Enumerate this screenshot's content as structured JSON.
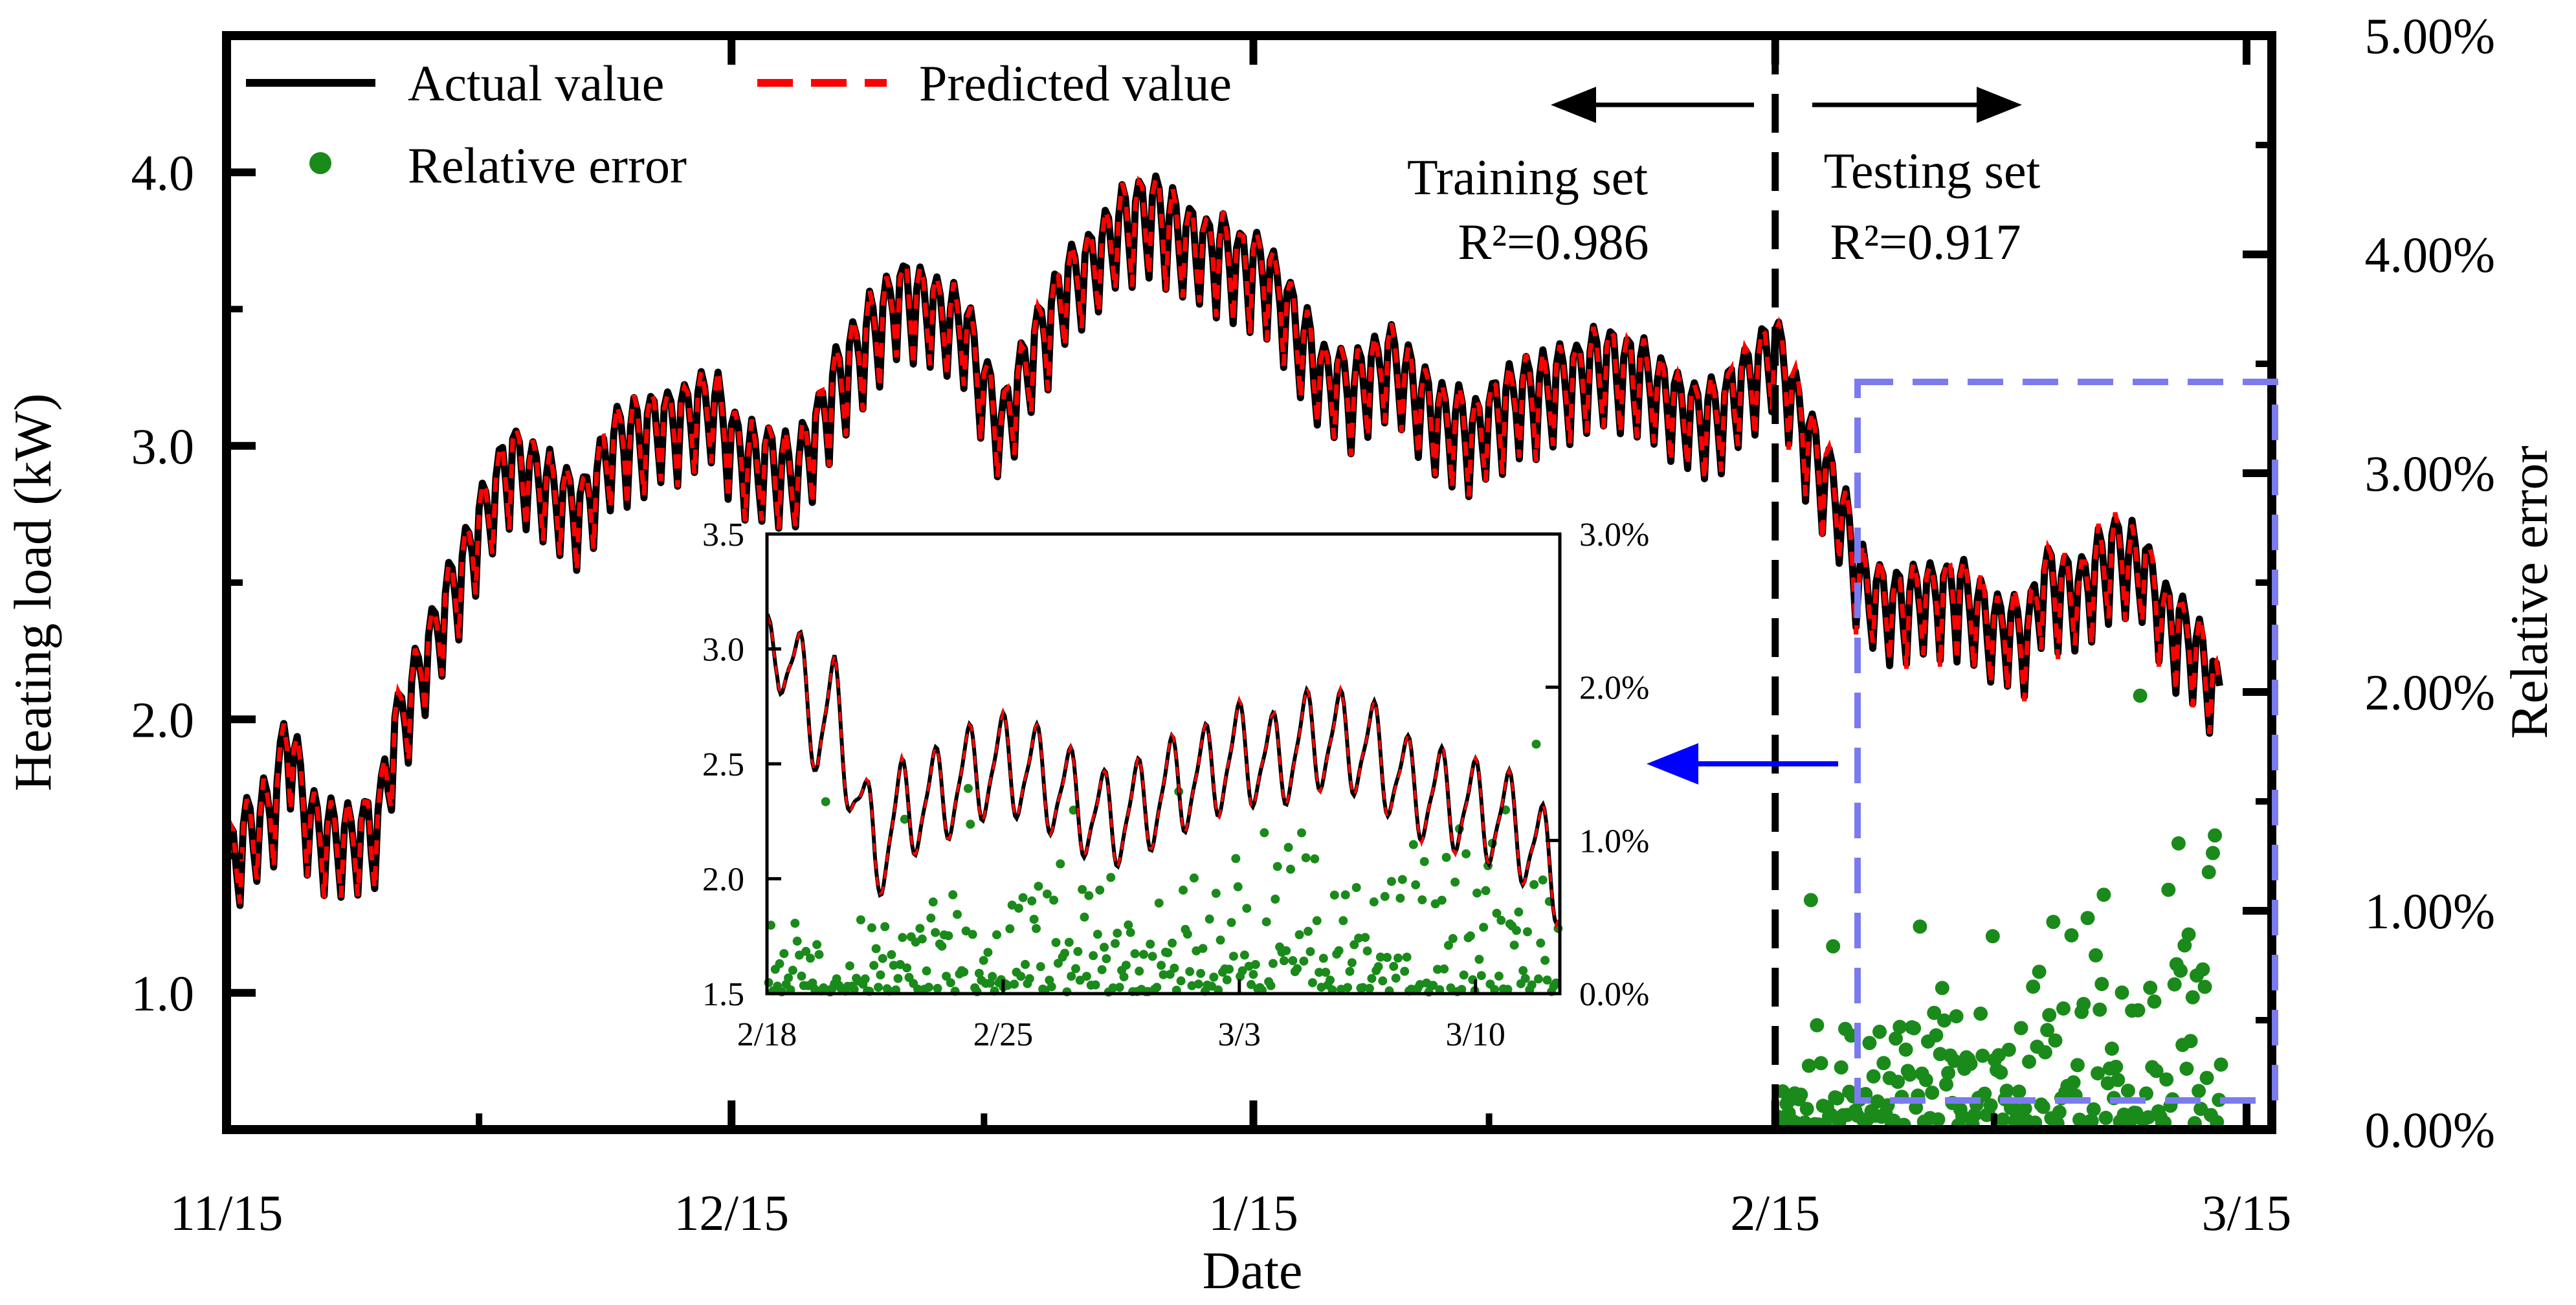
{
  "chart_data": {
    "main": {
      "type": "line",
      "xlabel": "Date",
      "ylabel_left": "Heating load (kW)",
      "ylabel_right": "Relative error",
      "x_ticks": [
        "11/15",
        "12/15",
        "1/15",
        "2/15",
        "3/15"
      ],
      "x_tick_days": [
        0,
        30,
        61,
        92,
        120
      ],
      "xlim_days": [
        0,
        121.5
      ],
      "ylim_left": [
        0.5,
        4.5
      ],
      "y_ticks_left": [
        "1.0",
        "2.0",
        "3.0",
        "4.0"
      ],
      "y_tick_values_left": [
        1.0,
        2.0,
        3.0,
        4.0
      ],
      "ylim_right": [
        0.0,
        5.0
      ],
      "y_ticks_right": [
        "0.00%",
        "1.00%",
        "2.00%",
        "3.00%",
        "4.00%",
        "5.00%"
      ],
      "y_tick_values_right": [
        0,
        1,
        2,
        3,
        4,
        5
      ],
      "split_day": 92,
      "trend_days": [
        0,
        1,
        3,
        3.5,
        5,
        7,
        9,
        10,
        12,
        14,
        16,
        17,
        19,
        21,
        23,
        25,
        27,
        29,
        30,
        31,
        33,
        34,
        36,
        38,
        40,
        42,
        44,
        46,
        47,
        48,
        50,
        52,
        53,
        55,
        57,
        59,
        60,
        61,
        62,
        63,
        65,
        67,
        69,
        70,
        72,
        74,
        76,
        78,
        80,
        82,
        84,
        86,
        88,
        90,
        92,
        93,
        94,
        95,
        96,
        97,
        99,
        101,
        103,
        105,
        107,
        108,
        110,
        112,
        114,
        115,
        117,
        118,
        118.5
      ],
      "trend_load": [
        1.45,
        1.55,
        1.7,
        1.95,
        1.6,
        1.55,
        1.6,
        1.95,
        2.25,
        2.55,
        2.85,
        2.95,
        2.85,
        2.75,
        3.0,
        3.05,
        3.1,
        3.15,
        3.0,
        2.95,
        2.9,
        2.9,
        3.2,
        3.4,
        3.55,
        3.5,
        3.4,
        3.05,
        3.2,
        3.35,
        3.6,
        3.7,
        3.8,
        3.85,
        3.75,
        3.7,
        3.65,
        3.65,
        3.6,
        3.5,
        3.25,
        3.2,
        3.3,
        3.25,
        3.1,
        3.05,
        3.15,
        3.2,
        3.25,
        3.3,
        3.25,
        3.15,
        3.1,
        3.2,
        3.35,
        3.2,
        3.0,
        2.9,
        2.75,
        2.5,
        2.4,
        2.45,
        2.45,
        2.35,
        2.3,
        2.5,
        2.45,
        2.6,
        2.55,
        2.4,
        2.25,
        2.15,
        2.0
      ],
      "series": [
        {
          "name": "Actual value",
          "color": "#000000"
        },
        {
          "name": "Predicted value",
          "color": "#ff0000"
        },
        {
          "name": "Relative error",
          "color": "#1a8a1a"
        }
      ],
      "annotations": {
        "training_label": "Training set",
        "training_r2": "R²=0.986",
        "testing_label": "Testing set",
        "testing_r2": "R²=0.917"
      }
    },
    "inset": {
      "type": "line",
      "x_ticks": [
        "2/18",
        "2/25",
        "3/3",
        "3/10"
      ],
      "x_tick_days": [
        0,
        7,
        14,
        21
      ],
      "xlim_days": [
        0,
        23.5
      ],
      "ylim_left": [
        1.5,
        3.5
      ],
      "y_ticks_left": [
        "1.5",
        "2.0",
        "2.5",
        "3.0",
        "3.5"
      ],
      "y_tick_values_left": [
        1.5,
        2.0,
        2.5,
        3.0,
        3.5
      ],
      "ylim_right": [
        0.0,
        3.0
      ],
      "y_ticks_right": [
        "0.0%",
        "1.0%",
        "2.0%",
        "3.0%"
      ],
      "y_tick_values_right": [
        0,
        1,
        2,
        3
      ],
      "trend_days": [
        0,
        0.3,
        1,
        1.5,
        2,
        2.7,
        3.2,
        4,
        5,
        6,
        7,
        8,
        9,
        10,
        11,
        12,
        13,
        14,
        15,
        16,
        17,
        18,
        19,
        20,
        21,
        22,
        23,
        23.5
      ],
      "trend_load": [
        2.9,
        3.05,
        2.85,
        2.65,
        2.75,
        2.35,
        2.1,
        2.3,
        2.35,
        2.45,
        2.5,
        2.45,
        2.35,
        2.25,
        2.3,
        2.4,
        2.45,
        2.55,
        2.5,
        2.6,
        2.6,
        2.55,
        2.4,
        2.35,
        2.3,
        2.25,
        2.1,
        2.0
      ]
    },
    "colors": {
      "actual": "#000000",
      "predicted": "#ff0000",
      "error_points": "#1a8a1a",
      "zoom_box": "#7b7bf0",
      "pointer_arrow": "#0000ff"
    }
  }
}
